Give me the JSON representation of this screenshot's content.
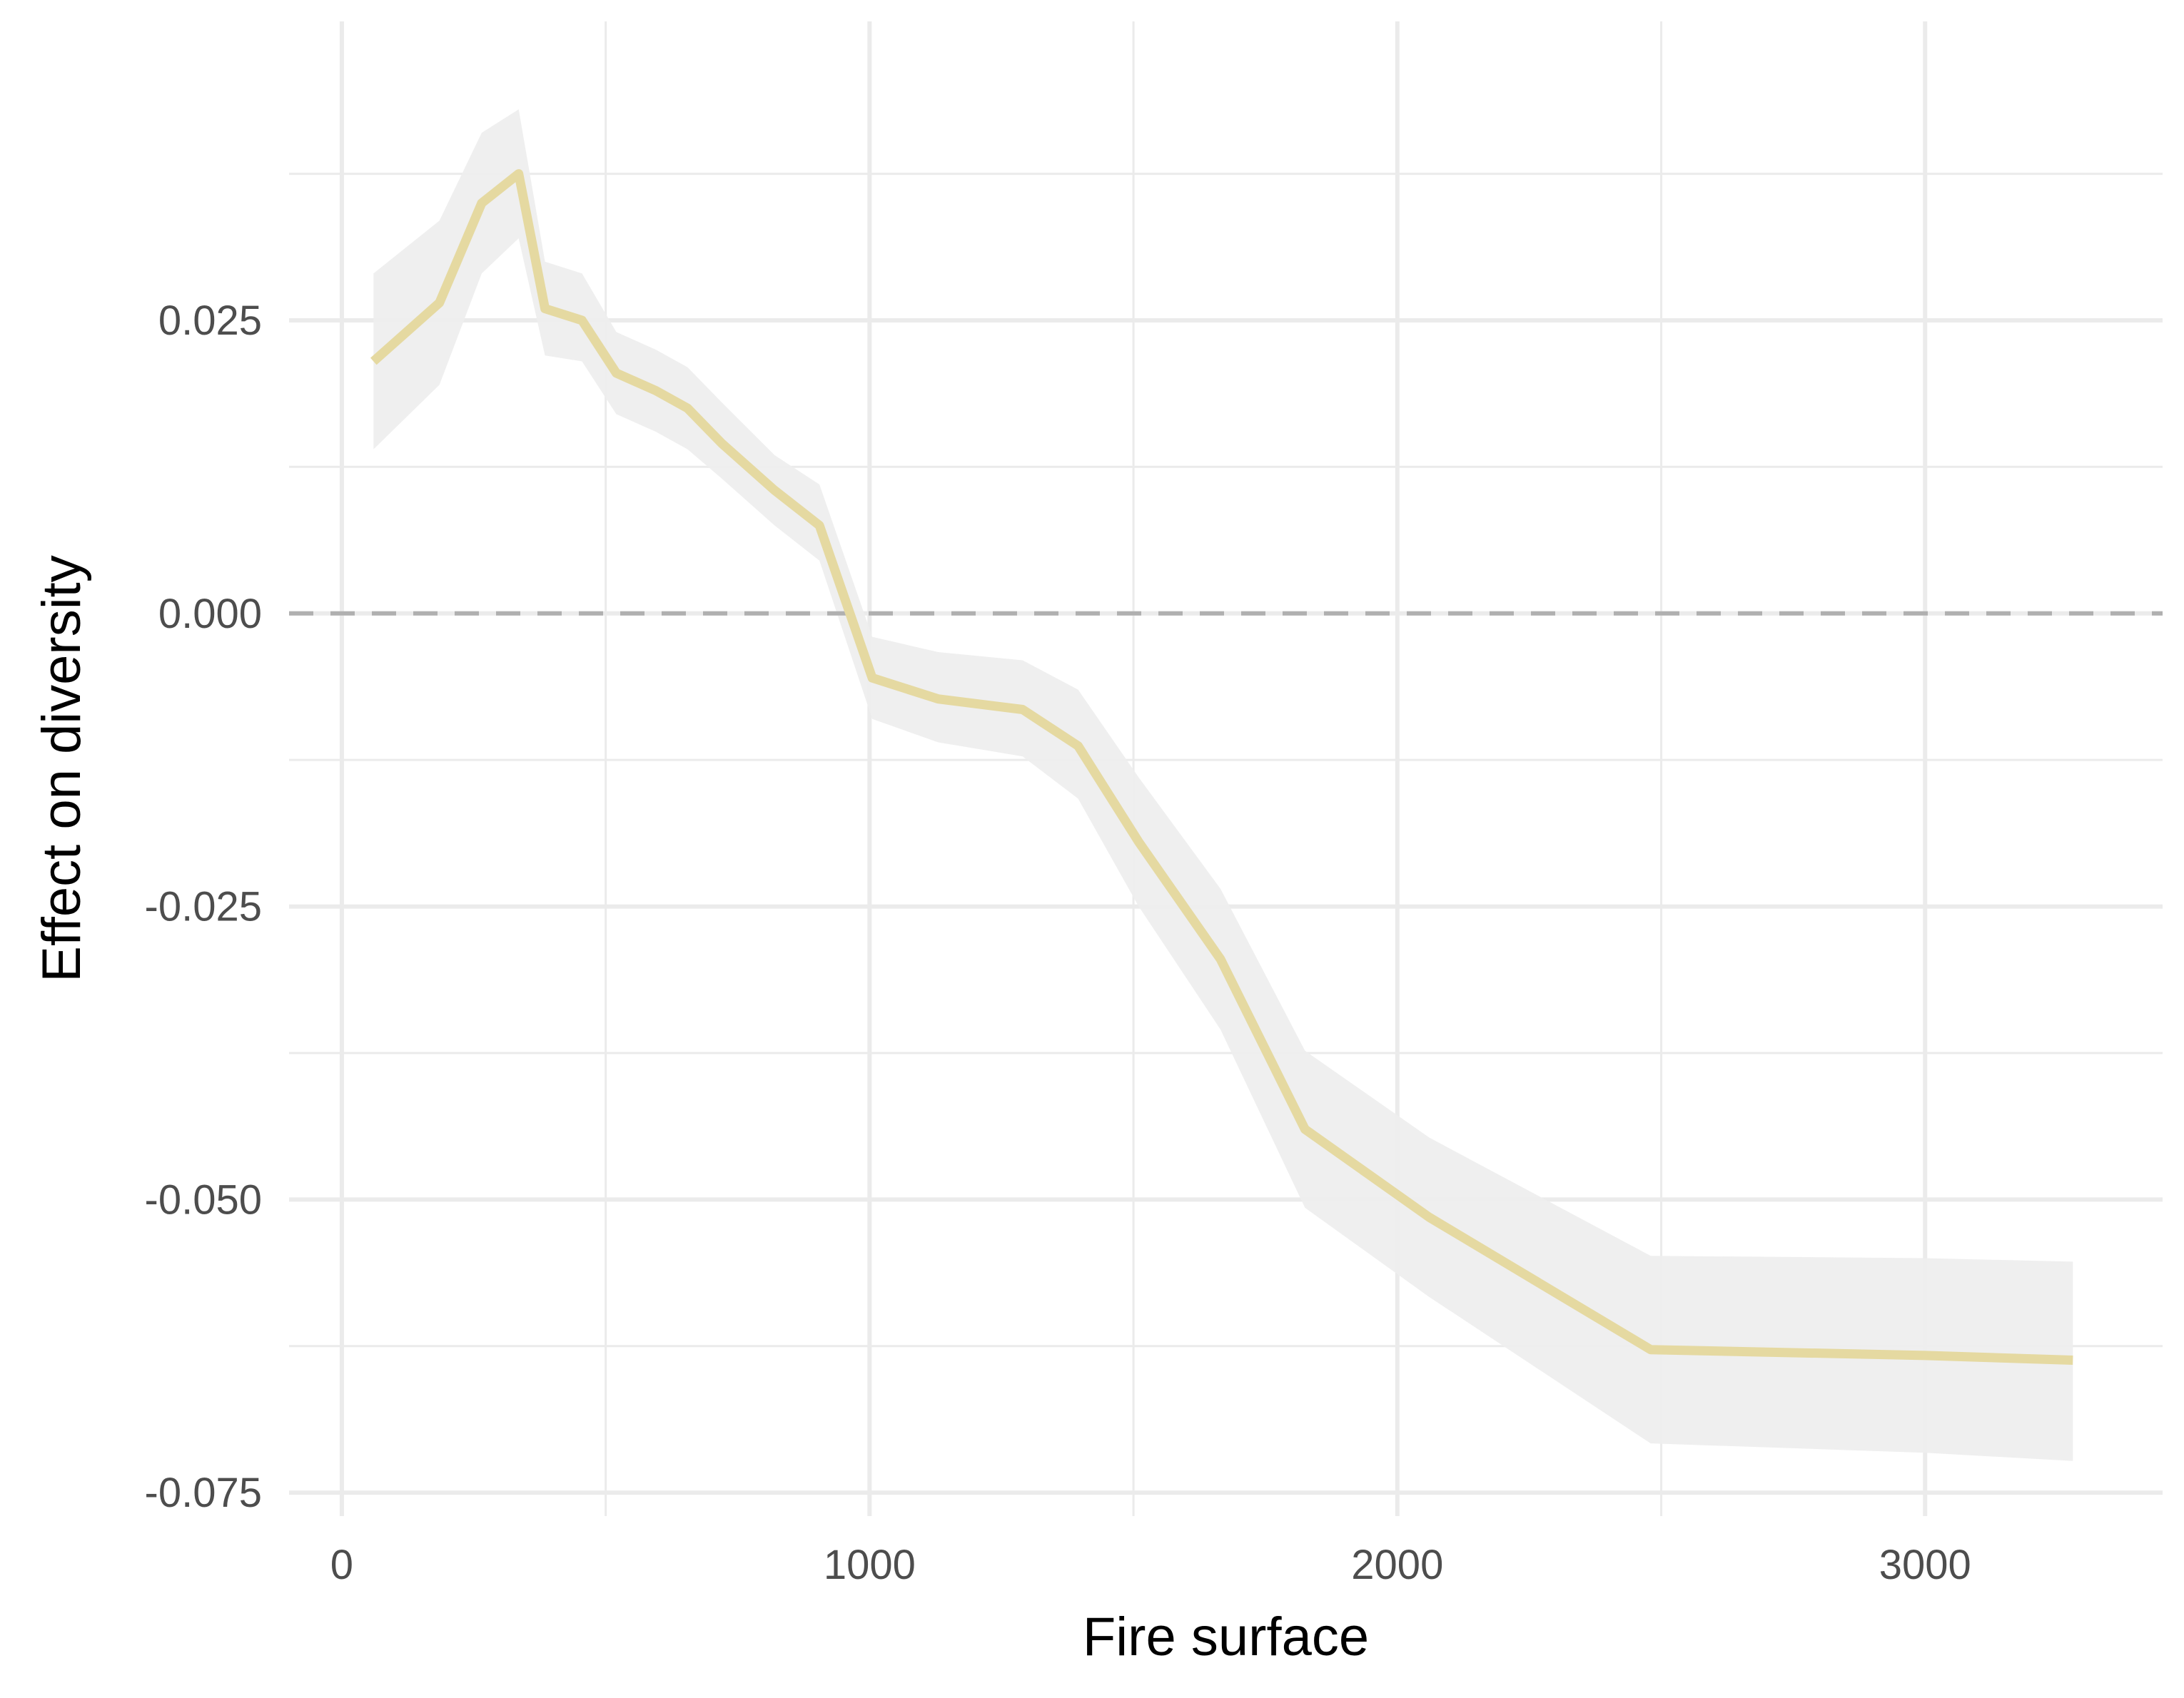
{
  "chart_data": {
    "type": "line",
    "title": "",
    "xlabel": "Fire surface",
    "ylabel": "Effect on diversity",
    "xlim": [
      -100,
      3450
    ],
    "ylim": [
      -0.077,
      0.0505
    ],
    "x_ticks": [
      0,
      1000,
      2000,
      3000
    ],
    "x_tick_labels": [
      "0",
      "1000",
      "2000",
      "3000"
    ],
    "y_ticks": [
      -0.075,
      -0.05,
      -0.025,
      0.0,
      0.025
    ],
    "y_tick_labels": [
      "-0.075",
      "-0.050",
      "-0.025",
      "0.000",
      "0.025"
    ],
    "x_minor_ticks": [
      500,
      1500,
      2500
    ],
    "y_minor_ticks": [
      -0.0625,
      -0.0375,
      -0.0125,
      0.0125,
      0.0375
    ],
    "grid": true,
    "reference_line": {
      "y": 0.0,
      "style": "dashed",
      "color": "#b0b0b0"
    },
    "line_color": "#e5d9a1",
    "band_color": "#eeeeee",
    "grid_color": "#ebebeb",
    "series": [
      {
        "x": [
          60,
          185,
          265,
          335,
          385,
          455,
          520,
          595,
          655,
          720,
          820,
          905,
          1005,
          1130,
          1290,
          1395,
          1510,
          1665,
          1825,
          2060,
          2480,
          3000,
          3280
        ],
        "y": [
          0.0215,
          0.0265,
          0.035,
          0.0375,
          0.026,
          0.025,
          0.0205,
          0.019,
          0.0175,
          0.0145,
          0.0105,
          0.0075,
          -0.0055,
          -0.0073,
          -0.0082,
          -0.0113,
          -0.0195,
          -0.0295,
          -0.044,
          -0.0515,
          -0.0628,
          -0.0633,
          -0.0637
        ],
        "lower": [
          0.014,
          0.0195,
          0.029,
          0.032,
          0.022,
          0.0215,
          0.017,
          0.0155,
          0.014,
          0.0115,
          0.0075,
          0.0045,
          -0.009,
          -0.011,
          -0.0122,
          -0.0158,
          -0.025,
          -0.0355,
          -0.0507,
          -0.0583,
          -0.0708,
          -0.0716,
          -0.0723
        ],
        "upper": [
          0.029,
          0.0335,
          0.041,
          0.043,
          0.03,
          0.029,
          0.024,
          0.0225,
          0.021,
          0.018,
          0.0135,
          0.011,
          -0.002,
          -0.0033,
          -0.004,
          -0.0065,
          -0.014,
          -0.0235,
          -0.0373,
          -0.0447,
          -0.0548,
          -0.055,
          -0.0553
        ]
      }
    ]
  }
}
